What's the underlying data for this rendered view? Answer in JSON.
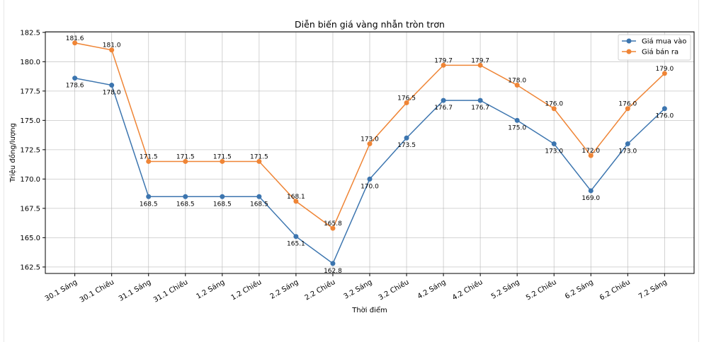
{
  "chart_data": {
    "type": "line",
    "title": "Diễn biến giá vàng nhẫn tròn trơn",
    "xlabel": "Thời điểm",
    "ylabel": "Triệu đồng/lượng",
    "categories": [
      "30.1 Sáng",
      "30.1 Chiều",
      "31.1 Sáng",
      "31.1 Chiều",
      "1.2 Sáng",
      "1.2 Chiều",
      "2.2 Sáng",
      "2.2 Chiều",
      "3.2 Sáng",
      "3.2 Chiều",
      "4.2 Sáng",
      "4.2 Chiều",
      "5.2 Sáng",
      "5.2 Chiều",
      "6.2 Sáng",
      "6.2 Chiều",
      "7.2 Sáng"
    ],
    "yticks": [
      "162.5",
      "165.0",
      "167.5",
      "170.0",
      "172.5",
      "175.0",
      "177.5",
      "180.0",
      "182.5"
    ],
    "ylim": [
      161.95,
      182.55
    ],
    "grid": true,
    "legend_placement": "top-right",
    "series": [
      {
        "name": "Giá mua vào",
        "color": "#3c75af",
        "labels_position": "below",
        "values": [
          178.6,
          178.0,
          168.5,
          168.5,
          168.5,
          168.5,
          165.1,
          162.8,
          170.0,
          173.5,
          176.7,
          176.7,
          175.0,
          173.0,
          169.0,
          173.0,
          176.0
        ],
        "labels": [
          "178.6",
          "178.0",
          "168.5",
          "168.5",
          "168.5",
          "168.5",
          "165.1",
          "162.8",
          "170.0",
          "173.5",
          "176.7",
          "176.7",
          "175.0",
          "173.0",
          "169.0",
          "173.0",
          "176.0"
        ]
      },
      {
        "name": "Giá bán ra",
        "color": "#ef8536",
        "labels_position": "above",
        "values": [
          181.6,
          181.0,
          171.5,
          171.5,
          171.5,
          171.5,
          168.1,
          165.8,
          173.0,
          176.5,
          179.7,
          179.7,
          178.0,
          176.0,
          172.0,
          176.0,
          179.0
        ],
        "labels": [
          "181.6",
          "181.0",
          "171.5",
          "171.5",
          "171.5",
          "171.5",
          "168.1",
          "165.8",
          "173.0",
          "176.5",
          "179.7",
          "179.7",
          "178.0",
          "176.0",
          "172.0",
          "176.0",
          "179.0"
        ]
      }
    ]
  }
}
